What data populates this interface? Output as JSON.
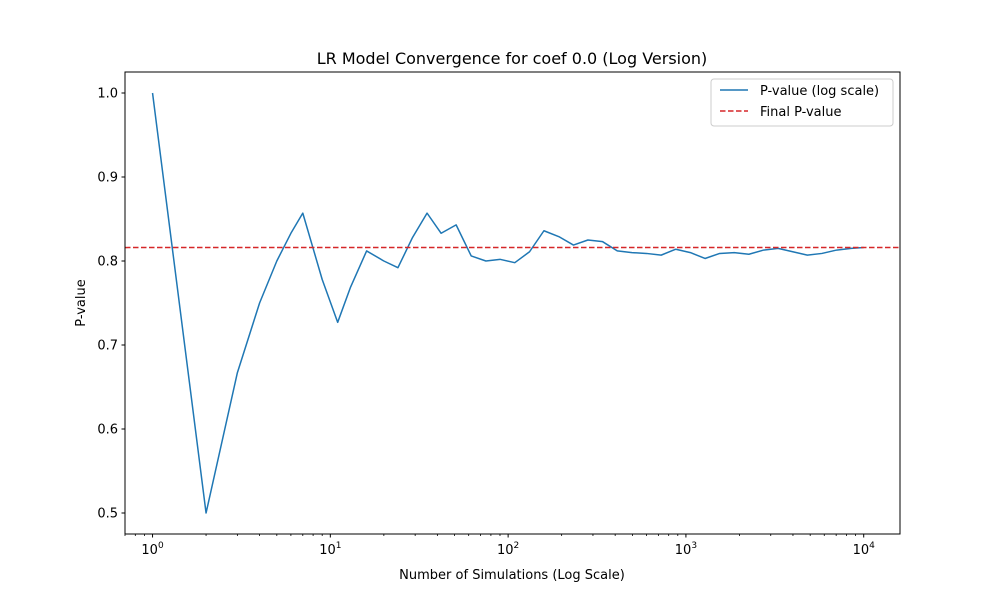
{
  "chart_data": {
    "type": "line",
    "title": "LR Model Convergence for coef 0.0 (Log Version)",
    "xlabel": "Number of Simulations (Log Scale)",
    "ylabel": "P-value",
    "x_scale": "log",
    "xlim": [
      0.7,
      16000
    ],
    "ylim": [
      0.475,
      1.025
    ],
    "x_ticks": [
      {
        "value": 1,
        "mantissa": "10",
        "exponent": "0"
      },
      {
        "value": 10,
        "mantissa": "10",
        "exponent": "1"
      },
      {
        "value": 100,
        "mantissa": "10",
        "exponent": "2"
      },
      {
        "value": 1000,
        "mantissa": "10",
        "exponent": "3"
      },
      {
        "value": 10000,
        "mantissa": "10",
        "exponent": "4"
      }
    ],
    "y_ticks": [
      "0.5",
      "0.6",
      "0.7",
      "0.8",
      "0.9",
      "1.0"
    ],
    "grid": false,
    "legend_position": "top-right",
    "series": [
      {
        "name": "P-value (log scale)",
        "color": "#1f77b4",
        "style": "solid",
        "x": [
          1,
          2,
          3,
          4,
          5,
          6,
          7,
          9,
          11,
          13,
          16,
          20,
          24,
          29,
          35,
          42,
          51,
          62,
          75,
          90,
          109,
          132,
          159,
          193,
          233,
          281,
          340,
          411,
          497,
          600,
          726,
          877,
          1060,
          1281,
          1548,
          1870,
          2260,
          2731,
          3300,
          3988,
          4819,
          5823,
          7036,
          8503,
          10000
        ],
        "values": [
          1.0,
          0.5,
          0.667,
          0.75,
          0.8,
          0.833,
          0.857,
          0.778,
          0.727,
          0.769,
          0.812,
          0.8,
          0.792,
          0.828,
          0.857,
          0.833,
          0.843,
          0.806,
          0.8,
          0.802,
          0.798,
          0.811,
          0.836,
          0.829,
          0.819,
          0.825,
          0.823,
          0.812,
          0.81,
          0.809,
          0.807,
          0.814,
          0.81,
          0.803,
          0.809,
          0.81,
          0.808,
          0.813,
          0.815,
          0.811,
          0.807,
          0.809,
          0.813,
          0.815,
          0.816
        ]
      },
      {
        "name": "Final P-value",
        "color": "#d62728",
        "style": "dashed",
        "hline": 0.816
      }
    ]
  }
}
